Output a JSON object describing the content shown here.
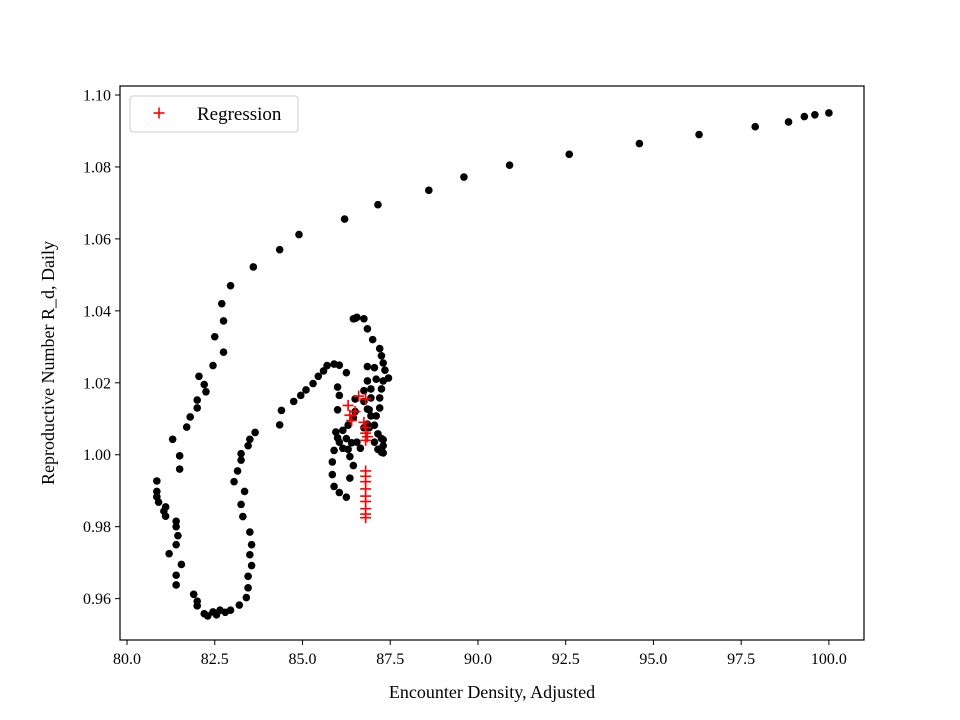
{
  "chart_data": {
    "type": "scatter",
    "title": "",
    "xlabel": "Encounter Density, Adjusted",
    "ylabel": "Reproductive Number R_d, Daily",
    "xlim": [
      79.8,
      101.0
    ],
    "ylim": [
      0.9485,
      1.1025
    ],
    "xticks": [
      80.0,
      82.5,
      85.0,
      87.5,
      90.0,
      92.5,
      95.0,
      97.5,
      100.0
    ],
    "xtick_labels": [
      "80.0",
      "82.5",
      "85.0",
      "87.5",
      "90.0",
      "92.5",
      "95.0",
      "97.5",
      "100.0"
    ],
    "yticks": [
      0.96,
      0.98,
      1.0,
      1.02,
      1.04,
      1.06,
      1.08,
      1.1
    ],
    "ytick_labels": [
      "0.96",
      "0.98",
      "1.00",
      "1.02",
      "1.04",
      "1.06",
      "1.08",
      "1.10"
    ],
    "grid": false,
    "legend": {
      "position": "top-left",
      "entries": [
        "Regression"
      ]
    },
    "series": [
      {
        "name": "",
        "marker": "circle",
        "color": "#000000",
        "points": [
          [
            100.0,
            1.095
          ],
          [
            99.6,
            1.0945
          ],
          [
            99.3,
            1.094
          ],
          [
            98.85,
            1.0925
          ],
          [
            97.9,
            1.0912
          ],
          [
            96.3,
            1.089
          ],
          [
            94.6,
            1.0865
          ],
          [
            92.6,
            1.0835
          ],
          [
            90.9,
            1.0805
          ],
          [
            89.6,
            1.0772
          ],
          [
            88.6,
            1.0735
          ],
          [
            87.15,
            1.0695
          ],
          [
            86.2,
            1.0655
          ],
          [
            84.9,
            1.0612
          ],
          [
            84.35,
            1.057
          ],
          [
            83.6,
            1.0522
          ],
          [
            82.95,
            1.047
          ],
          [
            82.7,
            1.042
          ],
          [
            82.75,
            1.0372
          ],
          [
            82.5,
            1.0328
          ],
          [
            82.75,
            1.0285
          ],
          [
            82.45,
            1.0248
          ],
          [
            82.05,
            1.0218
          ],
          [
            82.2,
            1.0195
          ],
          [
            82.25,
            1.0175
          ],
          [
            82.0,
            1.0152
          ],
          [
            82.0,
            1.013
          ],
          [
            81.8,
            1.0105
          ],
          [
            81.7,
            1.0077
          ],
          [
            81.3,
            1.0043
          ],
          [
            81.5,
            0.9997
          ],
          [
            81.5,
            0.996
          ],
          [
            80.85,
            0.9927
          ],
          [
            80.85,
            0.9898
          ],
          [
            80.85,
            0.9883
          ],
          [
            80.9,
            0.9868
          ],
          [
            81.1,
            0.9855
          ],
          [
            81.05,
            0.9843
          ],
          [
            81.1,
            0.9829
          ],
          [
            81.4,
            0.9815
          ],
          [
            81.4,
            0.98
          ],
          [
            81.45,
            0.9775
          ],
          [
            81.4,
            0.975
          ],
          [
            81.2,
            0.9725
          ],
          [
            81.55,
            0.9695
          ],
          [
            81.4,
            0.9665
          ],
          [
            81.4,
            0.9638
          ],
          [
            81.9,
            0.9612
          ],
          [
            82.0,
            0.9593
          ],
          [
            82.0,
            0.958
          ],
          [
            82.2,
            0.9558
          ],
          [
            82.3,
            0.9552
          ],
          [
            82.45,
            0.9563
          ],
          [
            82.55,
            0.9555
          ],
          [
            82.65,
            0.9568
          ],
          [
            82.8,
            0.9562
          ],
          [
            82.95,
            0.9568
          ],
          [
            83.2,
            0.9582
          ],
          [
            83.4,
            0.9603
          ],
          [
            83.45,
            0.963
          ],
          [
            83.45,
            0.9662
          ],
          [
            83.55,
            0.9692
          ],
          [
            83.5,
            0.9722
          ],
          [
            83.55,
            0.975
          ],
          [
            83.5,
            0.9785
          ],
          [
            83.3,
            0.9828
          ],
          [
            83.25,
            0.9862
          ],
          [
            83.35,
            0.9898
          ],
          [
            83.05,
            0.9925
          ],
          [
            83.15,
            0.9955
          ],
          [
            83.25,
            0.9985
          ],
          [
            83.25,
            1.0003
          ],
          [
            83.45,
            1.0025
          ],
          [
            83.5,
            1.0043
          ],
          [
            83.65,
            1.0062
          ],
          [
            84.35,
            1.0083
          ],
          [
            84.4,
            1.0123
          ],
          [
            84.75,
            1.0148
          ],
          [
            84.95,
            1.0165
          ],
          [
            85.1,
            1.018
          ],
          [
            85.3,
            1.0198
          ],
          [
            85.45,
            1.0218
          ],
          [
            85.6,
            1.0233
          ],
          [
            85.7,
            1.0248
          ],
          [
            85.9,
            1.0252
          ],
          [
            86.05,
            1.0249
          ],
          [
            86.25,
            1.0228
          ],
          [
            86.0,
            1.0188
          ],
          [
            86.05,
            1.0165
          ],
          [
            86.0,
            1.0125
          ],
          [
            85.95,
            1.0063
          ],
          [
            86.05,
            1.0035
          ],
          [
            86.15,
            1.0018
          ],
          [
            86.3,
            1.0015
          ],
          [
            86.25,
            1.0045
          ],
          [
            86.4,
            1.0033
          ],
          [
            86.35,
            0.9995
          ],
          [
            86.45,
            0.997
          ],
          [
            86.35,
            0.9935
          ],
          [
            86.25,
            0.9882
          ],
          [
            86.05,
            0.9895
          ],
          [
            85.9,
            0.9912
          ],
          [
            85.85,
            0.9945
          ],
          [
            85.85,
            0.998
          ],
          [
            85.9,
            1.0012
          ],
          [
            86.0,
            1.0047
          ],
          [
            86.15,
            1.0068
          ],
          [
            86.3,
            1.0082
          ],
          [
            86.45,
            1.0103
          ],
          [
            86.5,
            1.012
          ],
          [
            86.5,
            1.0155
          ],
          [
            86.55,
            1.0035
          ],
          [
            86.65,
            1.0018
          ],
          [
            86.75,
            1.0075
          ],
          [
            86.85,
            1.0085
          ],
          [
            86.85,
            1.0127
          ],
          [
            86.75,
            1.0148
          ],
          [
            86.75,
            1.0178
          ],
          [
            86.85,
            1.0205
          ],
          [
            86.85,
            1.0245
          ],
          [
            87.05,
            1.0242
          ],
          [
            87.1,
            1.021
          ],
          [
            86.95,
            1.0183
          ],
          [
            86.95,
            1.0158
          ],
          [
            86.9,
            1.0125
          ],
          [
            86.95,
            1.0108
          ],
          [
            86.9,
            1.0075
          ],
          [
            87.05,
            1.0035
          ],
          [
            87.15,
            1.0015
          ],
          [
            87.25,
            1.0007
          ],
          [
            87.3,
            1.0005
          ],
          [
            87.25,
            1.0018
          ],
          [
            87.3,
            1.0025
          ],
          [
            87.3,
            1.0042
          ],
          [
            87.25,
            1.0045
          ],
          [
            87.15,
            1.0058
          ],
          [
            87.05,
            1.0082
          ],
          [
            87.1,
            1.0108
          ],
          [
            87.2,
            1.013
          ],
          [
            87.2,
            1.0158
          ],
          [
            87.25,
            1.0183
          ],
          [
            87.3,
            1.0205
          ],
          [
            87.45,
            1.0213
          ],
          [
            87.35,
            1.0235
          ],
          [
            87.3,
            1.0255
          ],
          [
            87.25,
            1.0275
          ],
          [
            87.2,
            1.0295
          ],
          [
            87.0,
            1.032
          ],
          [
            86.85,
            1.035
          ],
          [
            86.75,
            1.0378
          ],
          [
            86.55,
            1.0382
          ],
          [
            86.5,
            1.0379
          ],
          [
            86.45,
            1.0378
          ]
        ]
      },
      {
        "name": "Regression",
        "marker": "plus",
        "color": "#ff0000",
        "points": [
          [
            86.6,
            1.0163
          ],
          [
            86.8,
            1.0155
          ],
          [
            86.3,
            1.0137
          ],
          [
            86.5,
            1.012
          ],
          [
            86.35,
            1.011
          ],
          [
            86.4,
            1.0095
          ],
          [
            86.75,
            1.009
          ],
          [
            86.8,
            1.0075
          ],
          [
            86.8,
            1.006
          ],
          [
            86.85,
            1.005
          ],
          [
            86.8,
            1.004
          ],
          [
            86.8,
            0.9955
          ],
          [
            86.8,
            0.994
          ],
          [
            86.8,
            0.9925
          ],
          [
            86.8,
            0.9905
          ],
          [
            86.8,
            0.9885
          ],
          [
            86.8,
            0.987
          ],
          [
            86.8,
            0.985
          ],
          [
            86.8,
            0.9835
          ],
          [
            86.8,
            0.9825
          ]
        ]
      }
    ]
  }
}
